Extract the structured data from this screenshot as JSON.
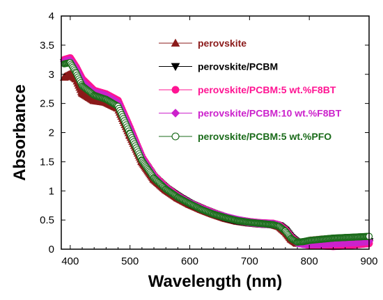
{
  "chart_data": {
    "type": "scatter",
    "title": "",
    "xlabel": "Wavelength (nm)",
    "ylabel": "Absorbance",
    "xlim": [
      385,
      900
    ],
    "ylim": [
      0,
      4
    ],
    "xticks": [
      400,
      500,
      600,
      700,
      800,
      900
    ],
    "yticks": [
      0,
      0.5,
      1,
      1.5,
      2,
      2.5,
      3,
      3.5,
      4
    ],
    "xtick_labels": [
      "400",
      "500",
      "600",
      "700",
      "800",
      "900"
    ],
    "ytick_labels": [
      "0",
      "0.5",
      "1",
      "1.5",
      "2",
      "2.5",
      "3",
      "3.5",
      "4"
    ],
    "grid": false,
    "legend_position": "top-right",
    "series": [
      {
        "name": "perovskite",
        "marker": "triangle-up",
        "color": "#8b1a1a",
        "fill": "#8b1a1a",
        "points": [
          [
            390,
            2.95
          ],
          [
            400,
            3.0
          ],
          [
            410,
            2.92
          ],
          [
            420,
            2.68
          ],
          [
            440,
            2.55
          ],
          [
            460,
            2.52
          ],
          [
            480,
            2.42
          ],
          [
            500,
            1.95
          ],
          [
            520,
            1.5
          ],
          [
            540,
            1.2
          ],
          [
            560,
            1.02
          ],
          [
            580,
            0.88
          ],
          [
            600,
            0.77
          ],
          [
            620,
            0.68
          ],
          [
            640,
            0.6
          ],
          [
            660,
            0.53
          ],
          [
            680,
            0.48
          ],
          [
            700,
            0.45
          ],
          [
            720,
            0.43
          ],
          [
            740,
            0.42
          ],
          [
            750,
            0.39
          ],
          [
            760,
            0.3
          ],
          [
            770,
            0.17
          ],
          [
            780,
            0.1
          ],
          [
            790,
            0.11
          ],
          [
            800,
            0.14
          ],
          [
            820,
            0.16
          ],
          [
            840,
            0.17
          ],
          [
            860,
            0.18
          ],
          [
            880,
            0.19
          ],
          [
            900,
            0.2
          ]
        ]
      },
      {
        "name": "perovskite/PCBM",
        "marker": "triangle-down",
        "color": "#000000",
        "fill": "#000000",
        "points": [
          [
            390,
            3.2
          ],
          [
            400,
            3.22
          ],
          [
            410,
            3.05
          ],
          [
            420,
            2.82
          ],
          [
            440,
            2.66
          ],
          [
            460,
            2.6
          ],
          [
            480,
            2.48
          ],
          [
            500,
            2.0
          ],
          [
            520,
            1.53
          ],
          [
            540,
            1.23
          ],
          [
            560,
            1.04
          ],
          [
            580,
            0.9
          ],
          [
            600,
            0.78
          ],
          [
            620,
            0.69
          ],
          [
            640,
            0.61
          ],
          [
            660,
            0.54
          ],
          [
            680,
            0.49
          ],
          [
            700,
            0.46
          ],
          [
            720,
            0.44
          ],
          [
            740,
            0.43
          ],
          [
            750,
            0.4
          ],
          [
            760,
            0.32
          ],
          [
            770,
            0.19
          ],
          [
            780,
            0.11
          ],
          [
            790,
            0.1
          ],
          [
            800,
            0.1
          ],
          [
            820,
            0.1
          ],
          [
            840,
            0.11
          ],
          [
            860,
            0.12
          ],
          [
            880,
            0.13
          ],
          [
            900,
            0.13
          ]
        ]
      },
      {
        "name": "perovskite/PCBM:5 wt.%F8BT",
        "marker": "circle",
        "color": "#ff1493",
        "fill": "#ff1493",
        "points": [
          [
            390,
            3.25
          ],
          [
            400,
            3.28
          ],
          [
            410,
            3.12
          ],
          [
            420,
            2.92
          ],
          [
            440,
            2.72
          ],
          [
            460,
            2.66
          ],
          [
            480,
            2.55
          ],
          [
            500,
            2.08
          ],
          [
            520,
            1.58
          ],
          [
            540,
            1.26
          ],
          [
            560,
            1.06
          ],
          [
            580,
            0.91
          ],
          [
            600,
            0.79
          ],
          [
            620,
            0.7
          ],
          [
            640,
            0.62
          ],
          [
            660,
            0.55
          ],
          [
            680,
            0.5
          ],
          [
            700,
            0.47
          ],
          [
            720,
            0.45
          ],
          [
            740,
            0.44
          ],
          [
            750,
            0.41
          ],
          [
            760,
            0.33
          ],
          [
            770,
            0.2
          ],
          [
            780,
            0.12
          ],
          [
            790,
            0.09
          ],
          [
            800,
            0.07
          ],
          [
            820,
            0.06
          ],
          [
            840,
            0.05
          ],
          [
            860,
            0.06
          ],
          [
            880,
            0.08
          ],
          [
            900,
            0.1
          ]
        ]
      },
      {
        "name": "perovskite/PCBM:10 wt.%F8BT",
        "marker": "diamond",
        "color": "#cc22cc",
        "fill": "#cc22cc",
        "points": [
          [
            390,
            3.22
          ],
          [
            400,
            3.24
          ],
          [
            410,
            3.08
          ],
          [
            420,
            2.87
          ],
          [
            440,
            2.69
          ],
          [
            460,
            2.63
          ],
          [
            480,
            2.51
          ],
          [
            500,
            2.04
          ],
          [
            520,
            1.56
          ],
          [
            540,
            1.25
          ],
          [
            560,
            1.05
          ],
          [
            580,
            0.9
          ],
          [
            600,
            0.79
          ],
          [
            620,
            0.69
          ],
          [
            640,
            0.61
          ],
          [
            660,
            0.55
          ],
          [
            680,
            0.5
          ],
          [
            700,
            0.46
          ],
          [
            720,
            0.44
          ],
          [
            740,
            0.43
          ],
          [
            750,
            0.4
          ],
          [
            760,
            0.32
          ],
          [
            770,
            0.19
          ],
          [
            780,
            0.11
          ],
          [
            790,
            0.09
          ],
          [
            800,
            0.09
          ],
          [
            820,
            0.09
          ],
          [
            840,
            0.1
          ],
          [
            860,
            0.11
          ],
          [
            880,
            0.12
          ],
          [
            900,
            0.14
          ]
        ]
      },
      {
        "name": "perovskite/PCBM:5 wt.%PFO",
        "marker": "circle-open",
        "color": "#1a6b1a",
        "fill": "#ffffff",
        "points": [
          [
            390,
            3.18
          ],
          [
            400,
            3.2
          ],
          [
            410,
            3.02
          ],
          [
            420,
            2.8
          ],
          [
            440,
            2.64
          ],
          [
            460,
            2.57
          ],
          [
            480,
            2.45
          ],
          [
            500,
            1.98
          ],
          [
            520,
            1.52
          ],
          [
            540,
            1.22
          ],
          [
            560,
            1.03
          ],
          [
            580,
            0.89
          ],
          [
            600,
            0.78
          ],
          [
            620,
            0.68
          ],
          [
            640,
            0.6
          ],
          [
            660,
            0.54
          ],
          [
            680,
            0.49
          ],
          [
            700,
            0.46
          ],
          [
            720,
            0.44
          ],
          [
            740,
            0.42
          ],
          [
            750,
            0.39
          ],
          [
            760,
            0.31
          ],
          [
            770,
            0.18
          ],
          [
            780,
            0.12
          ],
          [
            790,
            0.13
          ],
          [
            800,
            0.15
          ],
          [
            820,
            0.17
          ],
          [
            840,
            0.19
          ],
          [
            860,
            0.2
          ],
          [
            880,
            0.21
          ],
          [
            900,
            0.22
          ]
        ]
      }
    ]
  }
}
